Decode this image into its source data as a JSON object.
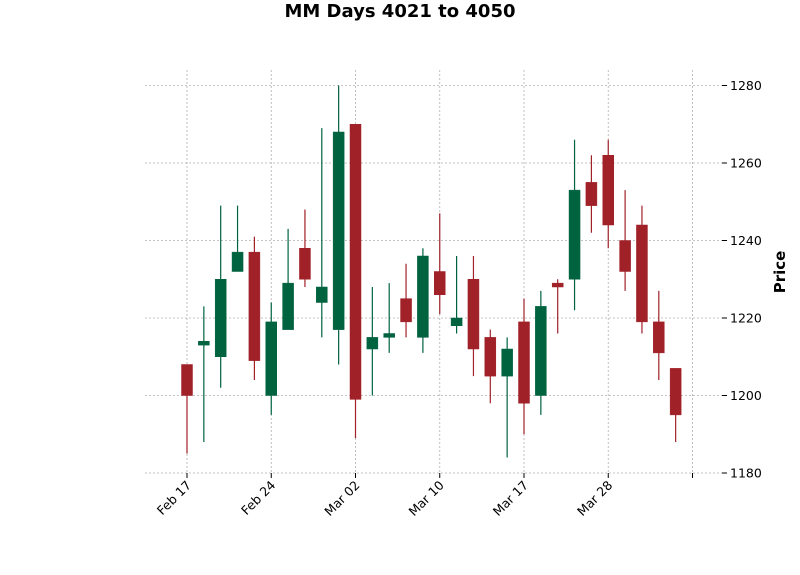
{
  "chart_data": {
    "type": "candlestick",
    "title": "MM Days 4021 to 4050",
    "ylabel": "Price",
    "xlabel": "",
    "ylim": [
      1180,
      1284
    ],
    "yticks": [
      1180,
      1200,
      1220,
      1240,
      1260,
      1280
    ],
    "grid": true,
    "colors": {
      "up": "#006340",
      "down": "#a02128"
    },
    "xtick_labels": [
      {
        "index": 0,
        "label": "Feb 17"
      },
      {
        "index": 5,
        "label": "Feb 24"
      },
      {
        "index": 10,
        "label": "Mar 02"
      },
      {
        "index": 15,
        "label": "Mar 10"
      },
      {
        "index": 20,
        "label": "Mar 17"
      },
      {
        "index": 25,
        "label": "Mar 28"
      },
      {
        "index": 30,
        "label": ""
      }
    ],
    "candles": [
      {
        "open": 1208,
        "high": 1208,
        "low": 1185,
        "close": 1200
      },
      {
        "open": 1213,
        "high": 1223,
        "low": 1188,
        "close": 1214
      },
      {
        "open": 1210,
        "high": 1249,
        "low": 1202,
        "close": 1230
      },
      {
        "open": 1232,
        "high": 1249,
        "low": 1232,
        "close": 1237
      },
      {
        "open": 1237,
        "high": 1241,
        "low": 1204,
        "close": 1209
      },
      {
        "open": 1200,
        "high": 1224,
        "low": 1195,
        "close": 1219
      },
      {
        "open": 1217,
        "high": 1243,
        "low": 1217,
        "close": 1229
      },
      {
        "open": 1238,
        "high": 1248,
        "low": 1228,
        "close": 1230
      },
      {
        "open": 1224,
        "high": 1269,
        "low": 1215,
        "close": 1228
      },
      {
        "open": 1217,
        "high": 1280,
        "low": 1208,
        "close": 1268
      },
      {
        "open": 1270,
        "high": 1270,
        "low": 1189,
        "close": 1199
      },
      {
        "open": 1212,
        "high": 1228,
        "low": 1200,
        "close": 1215
      },
      {
        "open": 1215,
        "high": 1229,
        "low": 1211,
        "close": 1216
      },
      {
        "open": 1225,
        "high": 1234,
        "low": 1215,
        "close": 1219
      },
      {
        "open": 1215,
        "high": 1238,
        "low": 1211,
        "close": 1236
      },
      {
        "open": 1232,
        "high": 1247,
        "low": 1221,
        "close": 1226
      },
      {
        "open": 1218,
        "high": 1236,
        "low": 1216,
        "close": 1220
      },
      {
        "open": 1230,
        "high": 1236,
        "low": 1205,
        "close": 1212
      },
      {
        "open": 1215,
        "high": 1217,
        "low": 1198,
        "close": 1205
      },
      {
        "open": 1205,
        "high": 1215,
        "low": 1184,
        "close": 1212
      },
      {
        "open": 1219,
        "high": 1225,
        "low": 1190,
        "close": 1198
      },
      {
        "open": 1200,
        "high": 1227,
        "low": 1195,
        "close": 1223
      },
      {
        "open": 1229,
        "high": 1230,
        "low": 1216,
        "close": 1228
      },
      {
        "open": 1230,
        "high": 1266,
        "low": 1222,
        "close": 1253
      },
      {
        "open": 1255,
        "high": 1262,
        "low": 1242,
        "close": 1249
      },
      {
        "open": 1262,
        "high": 1266,
        "low": 1238,
        "close": 1244
      },
      {
        "open": 1240,
        "high": 1253,
        "low": 1227,
        "close": 1232
      },
      {
        "open": 1244,
        "high": 1249,
        "low": 1216,
        "close": 1219
      },
      {
        "open": 1219,
        "high": 1227,
        "low": 1204,
        "close": 1211
      },
      {
        "open": 1207,
        "high": 1207,
        "low": 1188,
        "close": 1195
      }
    ]
  }
}
